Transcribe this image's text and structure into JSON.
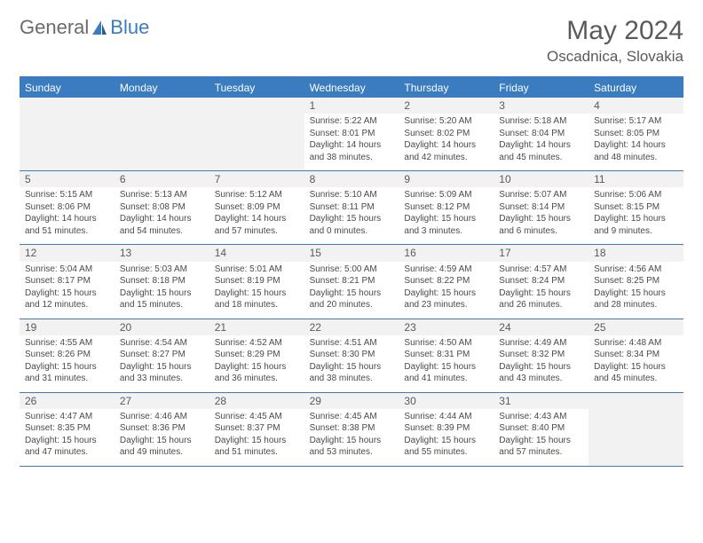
{
  "logo": {
    "text1": "General",
    "text2": "Blue"
  },
  "title": "May 2024",
  "location": "Oscadnica, Slovakia",
  "colors": {
    "header_bg": "#3b7bbf",
    "header_text": "#ffffff",
    "page_bg": "#ffffff",
    "text": "#4a4a4a",
    "daynum_bg": "#f2f2f2",
    "border": "#3b7bbf"
  },
  "weekdays": [
    "Sunday",
    "Monday",
    "Tuesday",
    "Wednesday",
    "Thursday",
    "Friday",
    "Saturday"
  ],
  "weeks": [
    [
      null,
      null,
      null,
      {
        "n": "1",
        "sunrise": "5:22 AM",
        "sunset": "8:01 PM",
        "dl1": "Daylight: 14 hours",
        "dl2": "and 38 minutes."
      },
      {
        "n": "2",
        "sunrise": "5:20 AM",
        "sunset": "8:02 PM",
        "dl1": "Daylight: 14 hours",
        "dl2": "and 42 minutes."
      },
      {
        "n": "3",
        "sunrise": "5:18 AM",
        "sunset": "8:04 PM",
        "dl1": "Daylight: 14 hours",
        "dl2": "and 45 minutes."
      },
      {
        "n": "4",
        "sunrise": "5:17 AM",
        "sunset": "8:05 PM",
        "dl1": "Daylight: 14 hours",
        "dl2": "and 48 minutes."
      }
    ],
    [
      {
        "n": "5",
        "sunrise": "5:15 AM",
        "sunset": "8:06 PM",
        "dl1": "Daylight: 14 hours",
        "dl2": "and 51 minutes."
      },
      {
        "n": "6",
        "sunrise": "5:13 AM",
        "sunset": "8:08 PM",
        "dl1": "Daylight: 14 hours",
        "dl2": "and 54 minutes."
      },
      {
        "n": "7",
        "sunrise": "5:12 AM",
        "sunset": "8:09 PM",
        "dl1": "Daylight: 14 hours",
        "dl2": "and 57 minutes."
      },
      {
        "n": "8",
        "sunrise": "5:10 AM",
        "sunset": "8:11 PM",
        "dl1": "Daylight: 15 hours",
        "dl2": "and 0 minutes."
      },
      {
        "n": "9",
        "sunrise": "5:09 AM",
        "sunset": "8:12 PM",
        "dl1": "Daylight: 15 hours",
        "dl2": "and 3 minutes."
      },
      {
        "n": "10",
        "sunrise": "5:07 AM",
        "sunset": "8:14 PM",
        "dl1": "Daylight: 15 hours",
        "dl2": "and 6 minutes."
      },
      {
        "n": "11",
        "sunrise": "5:06 AM",
        "sunset": "8:15 PM",
        "dl1": "Daylight: 15 hours",
        "dl2": "and 9 minutes."
      }
    ],
    [
      {
        "n": "12",
        "sunrise": "5:04 AM",
        "sunset": "8:17 PM",
        "dl1": "Daylight: 15 hours",
        "dl2": "and 12 minutes."
      },
      {
        "n": "13",
        "sunrise": "5:03 AM",
        "sunset": "8:18 PM",
        "dl1": "Daylight: 15 hours",
        "dl2": "and 15 minutes."
      },
      {
        "n": "14",
        "sunrise": "5:01 AM",
        "sunset": "8:19 PM",
        "dl1": "Daylight: 15 hours",
        "dl2": "and 18 minutes."
      },
      {
        "n": "15",
        "sunrise": "5:00 AM",
        "sunset": "8:21 PM",
        "dl1": "Daylight: 15 hours",
        "dl2": "and 20 minutes."
      },
      {
        "n": "16",
        "sunrise": "4:59 AM",
        "sunset": "8:22 PM",
        "dl1": "Daylight: 15 hours",
        "dl2": "and 23 minutes."
      },
      {
        "n": "17",
        "sunrise": "4:57 AM",
        "sunset": "8:24 PM",
        "dl1": "Daylight: 15 hours",
        "dl2": "and 26 minutes."
      },
      {
        "n": "18",
        "sunrise": "4:56 AM",
        "sunset": "8:25 PM",
        "dl1": "Daylight: 15 hours",
        "dl2": "and 28 minutes."
      }
    ],
    [
      {
        "n": "19",
        "sunrise": "4:55 AM",
        "sunset": "8:26 PM",
        "dl1": "Daylight: 15 hours",
        "dl2": "and 31 minutes."
      },
      {
        "n": "20",
        "sunrise": "4:54 AM",
        "sunset": "8:27 PM",
        "dl1": "Daylight: 15 hours",
        "dl2": "and 33 minutes."
      },
      {
        "n": "21",
        "sunrise": "4:52 AM",
        "sunset": "8:29 PM",
        "dl1": "Daylight: 15 hours",
        "dl2": "and 36 minutes."
      },
      {
        "n": "22",
        "sunrise": "4:51 AM",
        "sunset": "8:30 PM",
        "dl1": "Daylight: 15 hours",
        "dl2": "and 38 minutes."
      },
      {
        "n": "23",
        "sunrise": "4:50 AM",
        "sunset": "8:31 PM",
        "dl1": "Daylight: 15 hours",
        "dl2": "and 41 minutes."
      },
      {
        "n": "24",
        "sunrise": "4:49 AM",
        "sunset": "8:32 PM",
        "dl1": "Daylight: 15 hours",
        "dl2": "and 43 minutes."
      },
      {
        "n": "25",
        "sunrise": "4:48 AM",
        "sunset": "8:34 PM",
        "dl1": "Daylight: 15 hours",
        "dl2": "and 45 minutes."
      }
    ],
    [
      {
        "n": "26",
        "sunrise": "4:47 AM",
        "sunset": "8:35 PM",
        "dl1": "Daylight: 15 hours",
        "dl2": "and 47 minutes."
      },
      {
        "n": "27",
        "sunrise": "4:46 AM",
        "sunset": "8:36 PM",
        "dl1": "Daylight: 15 hours",
        "dl2": "and 49 minutes."
      },
      {
        "n": "28",
        "sunrise": "4:45 AM",
        "sunset": "8:37 PM",
        "dl1": "Daylight: 15 hours",
        "dl2": "and 51 minutes."
      },
      {
        "n": "29",
        "sunrise": "4:45 AM",
        "sunset": "8:38 PM",
        "dl1": "Daylight: 15 hours",
        "dl2": "and 53 minutes."
      },
      {
        "n": "30",
        "sunrise": "4:44 AM",
        "sunset": "8:39 PM",
        "dl1": "Daylight: 15 hours",
        "dl2": "and 55 minutes."
      },
      {
        "n": "31",
        "sunrise": "4:43 AM",
        "sunset": "8:40 PM",
        "dl1": "Daylight: 15 hours",
        "dl2": "and 57 minutes."
      },
      null
    ]
  ]
}
